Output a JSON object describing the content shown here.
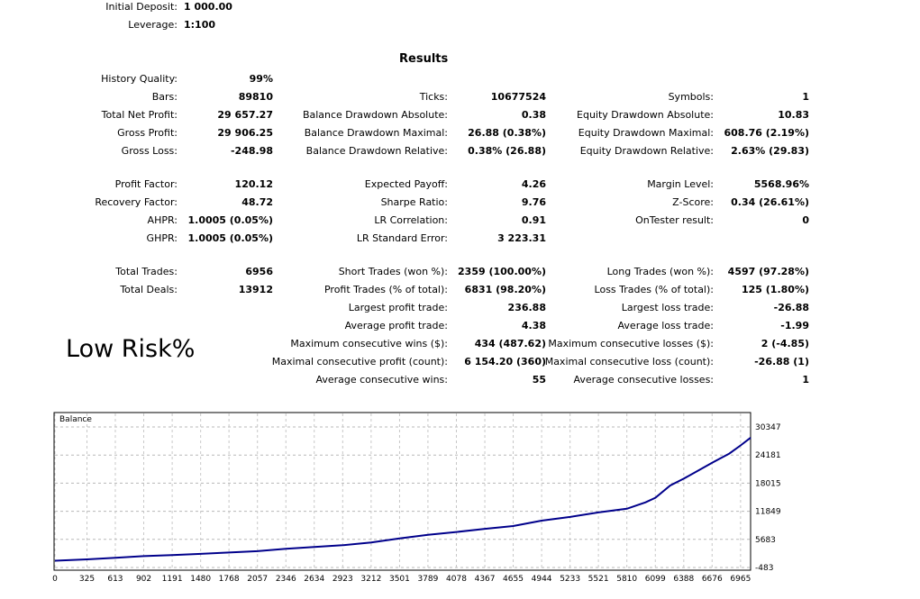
{
  "header": {
    "initial_deposit_label": "Initial Deposit:",
    "initial_deposit_value": "1 000.00",
    "leverage_label": "Leverage:",
    "leverage_value": "1:100"
  },
  "title": "Results",
  "note": "Low Risk%",
  "col1": [
    {
      "label": "History Quality:",
      "value": "99%"
    },
    {
      "label": "Bars:",
      "value": "89810"
    },
    {
      "label": "Total Net Profit:",
      "value": "29 657.27"
    },
    {
      "label": "Gross Profit:",
      "value": "29 906.25"
    },
    {
      "label": "Gross Loss:",
      "value": "-248.98"
    },
    {
      "label": "Profit Factor:",
      "value": "120.12"
    },
    {
      "label": "Recovery Factor:",
      "value": "48.72"
    },
    {
      "label": "AHPR:",
      "value": "1.0005 (0.05%)"
    },
    {
      "label": "GHPR:",
      "value": "1.0005 (0.05%)"
    },
    {
      "label": "Total Trades:",
      "value": "6956"
    },
    {
      "label": "Total Deals:",
      "value": "13912"
    }
  ],
  "col2": [
    {
      "label": "Ticks:",
      "value": "10677524"
    },
    {
      "label": "Balance Drawdown Absolute:",
      "value": "0.38"
    },
    {
      "label": "Balance Drawdown Maximal:",
      "value": "26.88 (0.38%)"
    },
    {
      "label": "Balance Drawdown Relative:",
      "value": "0.38% (26.88)"
    },
    {
      "label": "Expected Payoff:",
      "value": "4.26"
    },
    {
      "label": "Sharpe Ratio:",
      "value": "9.76"
    },
    {
      "label": "LR Correlation:",
      "value": "0.91"
    },
    {
      "label": "LR Standard Error:",
      "value": "3 223.31"
    },
    {
      "label": "Short Trades (won %):",
      "value": "2359 (100.00%)"
    },
    {
      "label": "Profit Trades (% of total):",
      "value": "6831 (98.20%)"
    },
    {
      "label": "Largest profit trade:",
      "value": "236.88"
    },
    {
      "label": "Average profit trade:",
      "value": "4.38"
    },
    {
      "label": "Maximum consecutive wins ($):",
      "value": "434 (487.62)"
    },
    {
      "label": "Maximal consecutive profit (count):",
      "value": "6 154.20 (360)"
    },
    {
      "label": "Average consecutive wins:",
      "value": "55"
    }
  ],
  "col3": [
    {
      "label": "Symbols:",
      "value": "1"
    },
    {
      "label": "Equity Drawdown Absolute:",
      "value": "10.83"
    },
    {
      "label": "Equity Drawdown Maximal:",
      "value": "608.76 (2.19%)"
    },
    {
      "label": "Equity Drawdown Relative:",
      "value": "2.63% (29.83)"
    },
    {
      "label": "Margin Level:",
      "value": "5568.96%"
    },
    {
      "label": "Z-Score:",
      "value": "0.34 (26.61%)"
    },
    {
      "label": "OnTester result:",
      "value": "0"
    },
    {
      "label": "Long Trades (won %):",
      "value": "4597 (97.28%)"
    },
    {
      "label": "Loss Trades (% of total):",
      "value": "125 (1.80%)"
    },
    {
      "label": "Largest loss trade:",
      "value": "-26.88"
    },
    {
      "label": "Average loss trade:",
      "value": "-1.99"
    },
    {
      "label": "Maximum consecutive losses ($):",
      "value": "2 (-4.85)"
    },
    {
      "label": "Maximal consecutive loss (count):",
      "value": "-26.88 (1)"
    },
    {
      "label": "Average consecutive losses:",
      "value": "1"
    }
  ],
  "chart_data": {
    "type": "line",
    "title": "Balance",
    "line_color": "#00008b",
    "grid": true,
    "x_ticks": [
      "0",
      "325",
      "613",
      "902",
      "1191",
      "1480",
      "1768",
      "2057",
      "2346",
      "2634",
      "2923",
      "3212",
      "3501",
      "3789",
      "4078",
      "4367",
      "4655",
      "4944",
      "5233",
      "5521",
      "5810",
      "6099",
      "6388",
      "6676",
      "6965"
    ],
    "y_ticks": [
      "30347",
      "24181",
      "18015",
      "11849",
      "5683",
      "-483"
    ],
    "xlim": [
      0,
      7067
    ],
    "ylim": [
      -483,
      30347
    ],
    "series": [
      {
        "x": [
          0,
          325,
          613,
          902,
          1191,
          1480,
          1768,
          2057,
          2346,
          2634,
          2923,
          3212,
          3501,
          3789,
          4078,
          4367,
          4655,
          4944,
          5233,
          5521,
          5810,
          6000,
          6099,
          6250,
          6388,
          6530,
          6676,
          6850,
          6965,
          7067
        ],
        "y": [
          1000,
          1300,
          1650,
          2000,
          2250,
          2500,
          2800,
          3100,
          3600,
          4000,
          4400,
          5000,
          5900,
          6700,
          7300,
          8000,
          8600,
          9800,
          10600,
          11600,
          12400,
          13800,
          14800,
          17500,
          19000,
          20700,
          22500,
          24500,
          26300,
          28000
        ]
      }
    ]
  }
}
